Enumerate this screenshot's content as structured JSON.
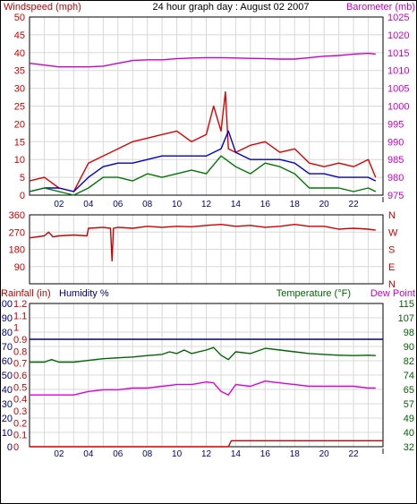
{
  "chart_data": [
    {
      "type": "line",
      "title": "24 hour graph day : August 02 2007",
      "ylabel_left": "Windspeed (mph)",
      "ylabel_right": "Barometer (mb)",
      "ylim": [
        0,
        50
      ],
      "ylim_right": [
        975,
        1025
      ],
      "yticks": [
        "0",
        "5",
        "10",
        "15",
        "20",
        "25",
        "30",
        "35",
        "40",
        "45",
        "50"
      ],
      "yticks_right": [
        "975",
        "980",
        "985",
        "990",
        "995",
        "1000",
        "1005",
        "1010",
        "1015",
        "1020",
        "1025"
      ],
      "xticks": [
        "02",
        "04",
        "06",
        "08",
        "10",
        "12",
        "14",
        "16",
        "18",
        "20",
        "22"
      ],
      "xlim": [
        0,
        24
      ],
      "grid": true,
      "series": [
        {
          "key": "gust",
          "color": "#e00000",
          "axis": "left",
          "x": [
            0,
            1,
            2,
            3,
            4,
            5,
            6,
            7,
            8,
            9,
            10,
            11,
            12,
            12.5,
            13,
            13.3,
            13.5,
            14,
            15,
            16,
            17,
            18,
            19,
            20,
            21,
            22,
            23,
            23.5
          ],
          "y": [
            4,
            5,
            2,
            1,
            9,
            11,
            13,
            15,
            16,
            17,
            18,
            15,
            17,
            25,
            18,
            29,
            13,
            12,
            14,
            15,
            12,
            13,
            9,
            8,
            9,
            8,
            10,
            5
          ]
        },
        {
          "key": "average",
          "color": "#0000cc",
          "axis": "left",
          "x": [
            0,
            1,
            2,
            3,
            4,
            5,
            6,
            7,
            8,
            9,
            10,
            11,
            12,
            13,
            13.5,
            14,
            15,
            16,
            17,
            18,
            19,
            20,
            21,
            22,
            23,
            23.5
          ],
          "y": [
            1,
            2,
            2,
            1,
            5,
            8,
            9,
            9,
            10,
            11,
            11,
            11,
            11,
            13,
            18,
            12,
            10,
            10,
            10,
            9,
            6,
            6,
            5,
            5,
            5,
            4
          ]
        },
        {
          "key": "wind",
          "color": "#007700",
          "axis": "left",
          "x": [
            0,
            1,
            2,
            3,
            4,
            5,
            6,
            7,
            8,
            9,
            10,
            11,
            12,
            13,
            14,
            15,
            16,
            17,
            18,
            19,
            20,
            21,
            22,
            23,
            23.5
          ],
          "y": [
            1,
            2,
            1,
            0,
            2,
            5,
            5,
            4,
            6,
            5,
            6,
            7,
            6,
            11,
            8,
            6,
            9,
            8,
            6,
            2,
            2,
            2,
            1,
            2,
            1
          ]
        },
        {
          "key": "barometer",
          "color": "#cc00cc",
          "axis": "right",
          "x": [
            0,
            1,
            2,
            3,
            4,
            5,
            6,
            7,
            8,
            9,
            10,
            11,
            12,
            13,
            14,
            15,
            16,
            17,
            18,
            19,
            20,
            21,
            22,
            23,
            23.5
          ],
          "y": [
            1012,
            1011.5,
            1011,
            1011,
            1011,
            1011.2,
            1012,
            1012.8,
            1013,
            1013,
            1013.3,
            1013.5,
            1013.6,
            1013.6,
            1013.5,
            1013.4,
            1013.3,
            1013.2,
            1013.2,
            1013.6,
            1014,
            1014.2,
            1014.6,
            1014.8,
            1014.6
          ]
        }
      ]
    },
    {
      "type": "line",
      "ylim": [
        0,
        360
      ],
      "yticks": [
        "90",
        "180",
        "270",
        "360"
      ],
      "yticks_right": [
        "N",
        "W",
        "S",
        "E",
        "N"
      ],
      "xlim": [
        0,
        24
      ],
      "grid": true,
      "series": [
        {
          "key": "direction",
          "color": "#cc0000",
          "x": [
            0,
            1,
            1.3,
            1.6,
            2,
            3,
            3.9,
            4,
            5,
            5.5,
            5.6,
            5.7,
            6,
            7,
            8,
            9,
            10,
            11,
            12,
            13,
            14,
            15,
            16,
            17,
            18,
            19,
            20,
            21,
            22,
            23,
            23.5
          ],
          "y": [
            240,
            250,
            270,
            245,
            250,
            255,
            250,
            290,
            295,
            290,
            120,
            290,
            295,
            290,
            300,
            295,
            300,
            298,
            305,
            310,
            300,
            305,
            295,
            300,
            310,
            300,
            300,
            285,
            290,
            285,
            280
          ]
        }
      ]
    },
    {
      "type": "line",
      "ylabel_left": "Rainfall (in)",
      "ylabel_left2": "Humidity %",
      "ylabel_right": "Temperature (°F)",
      "ylabel_right2": "Dew Point",
      "yticks_rain": [
        "0",
        "0.1",
        "0.2",
        "0.3",
        "0.4",
        "0.5",
        "0.6",
        "0.7",
        "0.8",
        "0.9",
        "1",
        "1.1",
        "1.2"
      ],
      "yticks_humidity": [
        "0",
        "10",
        "20",
        "30",
        "40",
        "50",
        "60",
        "70",
        "80",
        "90",
        "100"
      ],
      "yticks_right": [
        "32",
        "40",
        "49",
        "57",
        "65",
        "74",
        "82",
        "90",
        "98",
        "107",
        "115"
      ],
      "xticks": [
        "02",
        "04",
        "06",
        "08",
        "10",
        "12",
        "14",
        "16",
        "18",
        "20",
        "22"
      ],
      "xlim": [
        0,
        24
      ],
      "ylim_temp": [
        32,
        115
      ],
      "ylim_rain": [
        0,
        1.2
      ],
      "grid": true,
      "series": [
        {
          "key": "temperature",
          "color": "#006600",
          "x": [
            0,
            0.5,
            1,
            1.5,
            2,
            3,
            4,
            5,
            6,
            7,
            8,
            9,
            9.5,
            10,
            10.5,
            11,
            12,
            12.5,
            13,
            13.5,
            14,
            15,
            16,
            17,
            18,
            19,
            20,
            21,
            22,
            23,
            23.5
          ],
          "y": [
            81,
            81,
            81,
            82.5,
            81,
            81,
            82,
            83,
            83.5,
            84,
            84.8,
            85.5,
            87,
            86,
            88,
            86,
            88,
            89.5,
            85,
            82.5,
            87,
            86,
            89,
            88,
            87,
            86,
            85.5,
            85,
            84.8,
            85,
            84.8
          ]
        },
        {
          "key": "dewpoint",
          "color": "#dd00dd",
          "x": [
            0,
            1,
            2,
            3,
            4,
            5,
            6,
            7,
            8,
            9,
            10,
            11,
            12,
            12.5,
            13,
            13.5,
            14,
            15,
            16,
            17,
            18,
            19,
            20,
            21,
            22,
            23,
            23.5
          ],
          "y": [
            62,
            62,
            62,
            62,
            64,
            65,
            65,
            66,
            66,
            67,
            68,
            68,
            69.5,
            69,
            64,
            62,
            68,
            67,
            70,
            69,
            68,
            67,
            67,
            67,
            67,
            66,
            66
          ]
        },
        {
          "key": "humidity",
          "color": "#000080",
          "x": [
            0,
            24
          ],
          "y": [
            75,
            75
          ]
        },
        {
          "key": "rainfall",
          "color": "#cc0000",
          "x": [
            0,
            13.5,
            13.7,
            24
          ],
          "y": [
            0,
            0,
            0.05,
            0.05
          ]
        }
      ]
    }
  ]
}
